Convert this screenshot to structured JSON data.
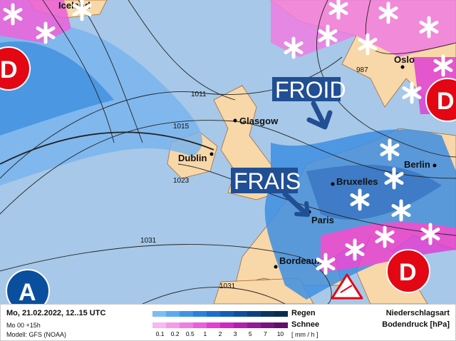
{
  "map": {
    "cities": [
      "Glasgow",
      "Dublin",
      "Bruxelles",
      "Berlin",
      "Oslo",
      "Paris",
      "Bordeaux",
      "Iceland"
    ],
    "isobars": [
      "1011",
      "1015",
      "1023",
      "987",
      "1031",
      "1031"
    ],
    "labels": {
      "cold": "FROID",
      "cool": "FRAIS"
    },
    "centers": {
      "low": "D",
      "high": "A"
    },
    "colors": {
      "sea": "#a7c8e8",
      "land": "#f8d7a8",
      "low": "#e30613",
      "high": "#0a4f9e",
      "tag": "#214f94"
    },
    "icons": [
      "snowflake-icon",
      "storm-warning-icon"
    ]
  },
  "legend": {
    "date": "Mo, 21.02.2022, 12..15 UTC",
    "run": "Mo 00 +15h",
    "model": "Modell: GFS (NOAA)",
    "rain": "Regen",
    "snow": "Schnee",
    "ticks": [
      "0.1",
      "0.2",
      "0.5",
      "1",
      "2",
      "3",
      "5",
      "7",
      "10"
    ],
    "unit": "[ mm / h ]",
    "title1": "Niederschlagsart",
    "title2": "Bodendruck [hPa]",
    "rain_colors": [
      "#7dbdf5",
      "#5aaaf0",
      "#3d94e6",
      "#2a80dc",
      "#1b6fcc",
      "#135fb6",
      "#0d509e",
      "#0b4184",
      "#0b3461",
      "#0a2c50"
    ],
    "snow_colors": [
      "#f8b8f0",
      "#f59ae9",
      "#f07de2",
      "#ea5fdb",
      "#e040d4",
      "#cc2ac2",
      "#b01fae",
      "#941a96",
      "#7a1380",
      "#630e6a"
    ]
  }
}
